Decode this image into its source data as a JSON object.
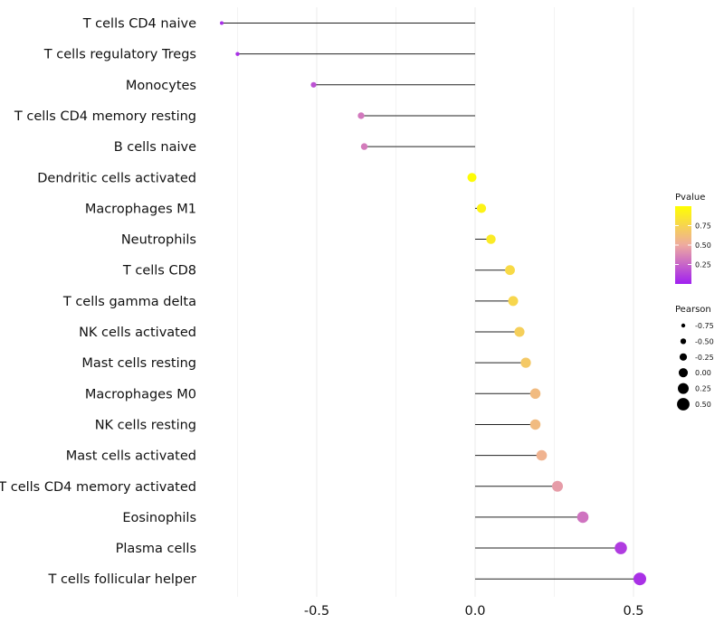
{
  "chart_data": {
    "type": "lollipop",
    "title": "",
    "xlabel": "",
    "ylabel": "",
    "xlim": [
      -0.86,
      0.55
    ],
    "xticks": [
      -0.5,
      0.0,
      0.5
    ],
    "xtick_labels": [
      "-0.5",
      "0.0",
      "0.5"
    ],
    "grid": true,
    "categories": [
      "T cells CD4 naive",
      "T cells regulatory  Tregs",
      "Monocytes",
      "T cells CD4 memory resting",
      "B cells naive",
      "Dendritic cells activated",
      "Macrophages M1",
      "Neutrophils",
      "T cells CD8",
      "T cells gamma delta",
      "NK cells activated",
      "Mast cells resting",
      "Macrophages M0",
      "NK cells resting",
      "Mast cells activated",
      "T cells CD4 memory activated",
      "Eosinophils",
      "Plasma cells",
      "T cells follicular helper"
    ],
    "pearson": [
      -0.8,
      -0.75,
      -0.51,
      -0.36,
      -0.35,
      -0.01,
      0.02,
      0.05,
      0.11,
      0.12,
      0.14,
      0.16,
      0.19,
      0.19,
      0.21,
      0.26,
      0.34,
      0.46,
      0.52
    ],
    "pvalue": [
      0.05,
      0.06,
      0.18,
      0.32,
      0.33,
      0.98,
      0.93,
      0.88,
      0.78,
      0.76,
      0.72,
      0.68,
      0.6,
      0.6,
      0.55,
      0.45,
      0.3,
      0.1,
      0.06
    ],
    "color_scale": {
      "low": "#a020f0",
      "mid": "#eeaaa0",
      "high": "#ffff00"
    },
    "legend": {
      "color_title": "Pvalue",
      "color_ticks": [
        0.75,
        0.5,
        0.25
      ],
      "color_tick_labels": [
        "0.75",
        "0.50",
        "0.25"
      ],
      "size_title": "Pearson",
      "size_ticks": [
        -0.75,
        -0.5,
        -0.25,
        0.0,
        0.25,
        0.5
      ],
      "size_tick_labels": [
        "-0.75",
        "-0.50",
        "-0.25",
        "0.00",
        "0.25",
        "0.50"
      ],
      "placement": "right"
    }
  }
}
